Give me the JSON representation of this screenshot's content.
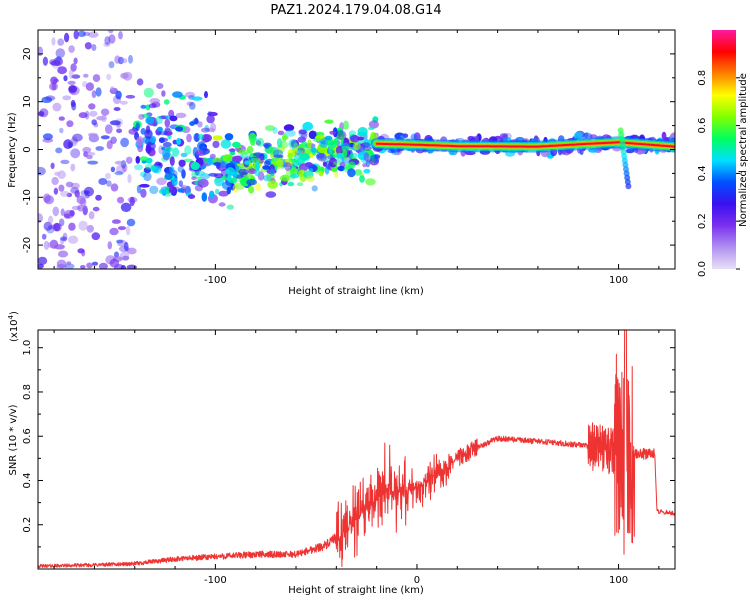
{
  "title": "PAZ1.2024.179.04.08.G14",
  "chart_data": [
    {
      "type": "heatmap",
      "panel": "spectrogram",
      "xlabel": "Height of straight line (km)",
      "ylabel": "Frequency (Hz)",
      "xlim": [
        -188,
        128
      ],
      "ylim": [
        -25,
        25
      ],
      "xticks": [
        -100,
        100
      ],
      "yticks": [
        -20,
        -10,
        0,
        10,
        20
      ],
      "grid": false,
      "colormap": [
        "#e8e0f8",
        "#b090f0",
        "#7a30f0",
        "#3a10f0",
        "#0050ff",
        "#00e0ff",
        "#00ff60",
        "#80ff00",
        "#ffff00",
        "#ff8000",
        "#ff0000",
        "#ff1aa0"
      ],
      "colorbar": {
        "label": "Normalized spectral amplitude",
        "range": [
          0,
          1
        ],
        "ticks": [
          0.0,
          0.2,
          0.4,
          0.6,
          0.8
        ]
      },
      "ridge": [
        {
          "x": -20,
          "y": 1.2
        },
        {
          "x": 0,
          "y": 1.0
        },
        {
          "x": 20,
          "y": 0.7
        },
        {
          "x": 60,
          "y": 0.6
        },
        {
          "x": 85,
          "y": 1.2
        },
        {
          "x": 100,
          "y": 1.5
        },
        {
          "x": 128,
          "y": 0.6
        }
      ]
    },
    {
      "type": "line",
      "panel": "snr",
      "xlabel": "Height of straight line (km)",
      "ylabel": "SNR (10 * v/v)",
      "y_multiplier": "(x10",
      "y_multiplier_exp": "4",
      "y_multiplier_close": ")",
      "xlim": [
        -188,
        128
      ],
      "ylim": [
        0,
        1.08
      ],
      "xticks": [
        -100,
        0,
        100
      ],
      "yticks": [
        0.2,
        0.4,
        0.6,
        0.8,
        1.0
      ],
      "grid": false,
      "color": "#ee3333",
      "series": [
        {
          "x": [
            -188,
            -160,
            -140,
            -120,
            -100,
            -80,
            -60,
            -45,
            -35,
            -25,
            -15,
            -5,
            5,
            20,
            30,
            40,
            55,
            70,
            80,
            90,
            95,
            100,
            103,
            106,
            110,
            118,
            119,
            120,
            128
          ],
          "y": [
            0.01,
            0.015,
            0.02,
            0.04,
            0.05,
            0.06,
            0.06,
            0.1,
            0.16,
            0.28,
            0.35,
            0.35,
            0.4,
            0.5,
            0.55,
            0.59,
            0.58,
            0.57,
            0.56,
            0.55,
            0.54,
            0.54,
            0.5,
            0.52,
            0.52,
            0.52,
            0.26,
            0.26,
            0.25
          ]
        }
      ]
    }
  ]
}
